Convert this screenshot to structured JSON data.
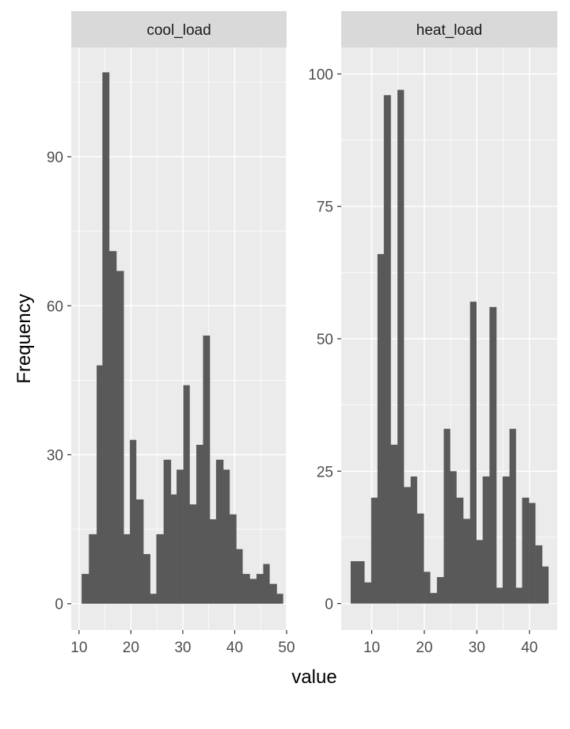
{
  "chart_data": {
    "type": "bar",
    "xlabel": "value",
    "ylabel": "Frequency",
    "colors": {
      "panel_bg": "#ebebeb",
      "strip_bg": "#d9d9d9",
      "bar_fill": "#595959",
      "grid": "#ffffff"
    },
    "panels": [
      {
        "title": "cool_load",
        "xlim": [
          8.5,
          50
        ],
        "ylim": [
          -5.3,
          112
        ],
        "x_ticks": [
          10,
          20,
          30,
          40,
          50
        ],
        "y_ticks": [
          0,
          30,
          60,
          90
        ],
        "bins": [
          {
            "x0": 10.5,
            "x1": 11.9,
            "count": 6
          },
          {
            "x0": 11.9,
            "x1": 13.4,
            "count": 14
          },
          {
            "x0": 13.4,
            "x1": 14.5,
            "count": 48
          },
          {
            "x0": 14.5,
            "x1": 15.8,
            "count": 107
          },
          {
            "x0": 15.8,
            "x1": 17.2,
            "count": 71
          },
          {
            "x0": 17.2,
            "x1": 18.6,
            "count": 67
          },
          {
            "x0": 18.6,
            "x1": 19.8,
            "count": 14
          },
          {
            "x0": 19.8,
            "x1": 21.0,
            "count": 33
          },
          {
            "x0": 21.0,
            "x1": 22.4,
            "count": 21
          },
          {
            "x0": 22.4,
            "x1": 23.7,
            "count": 10
          },
          {
            "x0": 23.7,
            "x1": 24.9,
            "count": 2
          },
          {
            "x0": 24.9,
            "x1": 26.3,
            "count": 14
          },
          {
            "x0": 26.3,
            "x1": 27.7,
            "count": 29
          },
          {
            "x0": 27.7,
            "x1": 28.8,
            "count": 22
          },
          {
            "x0": 28.8,
            "x1": 30.1,
            "count": 27
          },
          {
            "x0": 30.1,
            "x1": 31.3,
            "count": 44
          },
          {
            "x0": 31.3,
            "x1": 32.6,
            "count": 20
          },
          {
            "x0": 32.6,
            "x1": 33.9,
            "count": 32
          },
          {
            "x0": 33.9,
            "x1": 35.2,
            "count": 54
          },
          {
            "x0": 35.2,
            "x1": 36.4,
            "count": 17
          },
          {
            "x0": 36.4,
            "x1": 37.8,
            "count": 29
          },
          {
            "x0": 37.8,
            "x1": 39.0,
            "count": 27
          },
          {
            "x0": 39.0,
            "x1": 40.3,
            "count": 18
          },
          {
            "x0": 40.3,
            "x1": 41.5,
            "count": 11
          },
          {
            "x0": 41.5,
            "x1": 42.9,
            "count": 6
          },
          {
            "x0": 42.9,
            "x1": 44.2,
            "count": 5
          },
          {
            "x0": 44.2,
            "x1": 45.5,
            "count": 6
          },
          {
            "x0": 45.5,
            "x1": 46.7,
            "count": 8
          },
          {
            "x0": 46.7,
            "x1": 48.1,
            "count": 4
          },
          {
            "x0": 48.1,
            "x1": 49.3,
            "count": 2
          }
        ]
      },
      {
        "title": "heat_load",
        "xlim": [
          4.2,
          45.3
        ],
        "ylim": [
          -5,
          105
        ],
        "x_ticks": [
          10,
          20,
          30,
          40
        ],
        "y_ticks": [
          0,
          25,
          50,
          75,
          100
        ],
        "bins": [
          {
            "x0": 6.0,
            "x1": 7.3,
            "count": 8
          },
          {
            "x0": 7.3,
            "x1": 8.6,
            "count": 8
          },
          {
            "x0": 8.6,
            "x1": 9.9,
            "count": 4
          },
          {
            "x0": 9.9,
            "x1": 11.1,
            "count": 20
          },
          {
            "x0": 11.1,
            "x1": 12.3,
            "count": 66
          },
          {
            "x0": 12.3,
            "x1": 13.6,
            "count": 96
          },
          {
            "x0": 13.6,
            "x1": 14.9,
            "count": 30
          },
          {
            "x0": 14.9,
            "x1": 16.1,
            "count": 97
          },
          {
            "x0": 16.1,
            "x1": 17.4,
            "count": 22
          },
          {
            "x0": 17.4,
            "x1": 18.6,
            "count": 24
          },
          {
            "x0": 18.6,
            "x1": 19.9,
            "count": 17
          },
          {
            "x0": 19.9,
            "x1": 21.1,
            "count": 6
          },
          {
            "x0": 21.1,
            "x1": 22.4,
            "count": 2
          },
          {
            "x0": 22.4,
            "x1": 23.7,
            "count": 5
          },
          {
            "x0": 23.7,
            "x1": 24.9,
            "count": 33
          },
          {
            "x0": 24.9,
            "x1": 26.1,
            "count": 25
          },
          {
            "x0": 26.1,
            "x1": 27.4,
            "count": 20
          },
          {
            "x0": 27.4,
            "x1": 28.7,
            "count": 16
          },
          {
            "x0": 28.7,
            "x1": 29.9,
            "count": 57
          },
          {
            "x0": 29.9,
            "x1": 31.1,
            "count": 12
          },
          {
            "x0": 31.1,
            "x1": 32.4,
            "count": 24
          },
          {
            "x0": 32.4,
            "x1": 33.7,
            "count": 56
          },
          {
            "x0": 33.7,
            "x1": 34.9,
            "count": 3
          },
          {
            "x0": 34.9,
            "x1": 36.2,
            "count": 24
          },
          {
            "x0": 36.2,
            "x1": 37.4,
            "count": 33
          },
          {
            "x0": 37.4,
            "x1": 38.6,
            "count": 3
          },
          {
            "x0": 38.6,
            "x1": 39.9,
            "count": 20
          },
          {
            "x0": 39.9,
            "x1": 41.1,
            "count": 19
          },
          {
            "x0": 41.1,
            "x1": 42.4,
            "count": 11
          },
          {
            "x0": 42.4,
            "x1": 43.6,
            "count": 7
          }
        ]
      }
    ]
  }
}
